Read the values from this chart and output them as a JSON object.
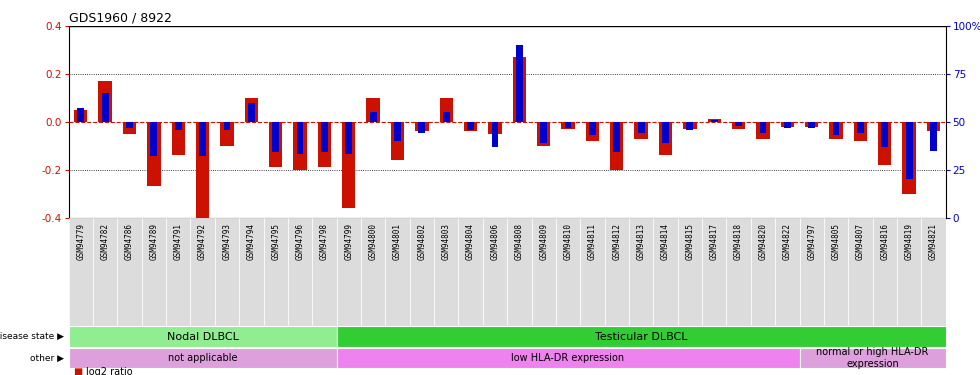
{
  "title": "GDS1960 / 8922",
  "samples": [
    "GSM94779",
    "GSM94782",
    "GSM94786",
    "GSM94789",
    "GSM94791",
    "GSM94792",
    "GSM94793",
    "GSM94794",
    "GSM94795",
    "GSM94796",
    "GSM94798",
    "GSM94799",
    "GSM94800",
    "GSM94801",
    "GSM94802",
    "GSM94803",
    "GSM94804",
    "GSM94806",
    "GSM94808",
    "GSM94809",
    "GSM94810",
    "GSM94811",
    "GSM94812",
    "GSM94813",
    "GSM94814",
    "GSM94815",
    "GSM94817",
    "GSM94818",
    "GSM94820",
    "GSM94822",
    "GSM94797",
    "GSM94805",
    "GSM94807",
    "GSM94816",
    "GSM94819",
    "GSM94821"
  ],
  "log2_ratio": [
    0.05,
    0.17,
    -0.05,
    -0.27,
    -0.14,
    -0.4,
    -0.1,
    0.1,
    -0.19,
    -0.2,
    -0.19,
    -0.36,
    0.1,
    -0.16,
    -0.04,
    0.1,
    -0.04,
    -0.05,
    0.27,
    -0.1,
    -0.03,
    -0.08,
    -0.2,
    -0.07,
    -0.14,
    -0.03,
    0.01,
    -0.03,
    -0.07,
    -0.02,
    -0.02,
    -0.07,
    -0.08,
    -0.18,
    -0.3,
    -0.04
  ],
  "percentile": [
    57,
    65,
    47,
    32,
    46,
    32,
    46,
    60,
    34,
    33,
    34,
    33,
    55,
    40,
    44,
    55,
    46,
    37,
    90,
    39,
    47,
    43,
    34,
    44,
    39,
    46,
    51,
    48,
    44,
    47,
    47,
    43,
    44,
    37,
    20,
    35
  ],
  "disease_state_groups": [
    {
      "label": "Nodal DLBCL",
      "start": 0,
      "end": 11,
      "color": "#90EE90"
    },
    {
      "label": "Testicular DLBCL",
      "start": 11,
      "end": 36,
      "color": "#32CD32"
    }
  ],
  "other_groups": [
    {
      "label": "not applicable",
      "start": 0,
      "end": 11,
      "color": "#DDA0DD"
    },
    {
      "label": "low HLA-DR expression",
      "start": 11,
      "end": 30,
      "color": "#EE82EE"
    },
    {
      "label": "normal or high HLA-DR\nexpression",
      "start": 30,
      "end": 36,
      "color": "#DDA0DD"
    }
  ],
  "log2_color": "#CC1100",
  "percentile_color": "#0000CC",
  "ylim": [
    -0.4,
    0.4
  ],
  "y2lim": [
    0,
    100
  ],
  "yticks": [
    -0.4,
    -0.2,
    0.0,
    0.2,
    0.4
  ],
  "y2ticks": [
    0,
    25,
    50,
    75,
    100
  ],
  "dotted_lines": [
    -0.2,
    0.0,
    0.2
  ]
}
